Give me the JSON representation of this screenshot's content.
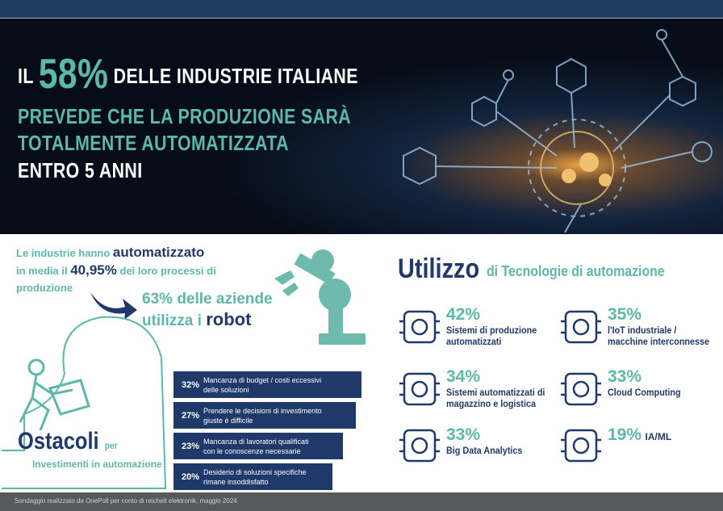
{
  "header": {
    "prefix": "IL",
    "highlight": "58%",
    "line1_rest": "DELLE INDUSTRIE ITALIANE",
    "line2": "PREVEDE CHE LA PRODUZIONE SARÀ",
    "line3": "TOTALMENTE AUTOMATIZZATA",
    "line4": "ENTRO 5 ANNI"
  },
  "automation": {
    "text1": "Le industrie hanno",
    "bold1": "automatizzato",
    "text2": "in media il",
    "bold2": "40,95%",
    "text3": "dei loro processi di",
    "text4": "produzione"
  },
  "robots": {
    "highlight": "63%",
    "text1": "delle aziende",
    "text2": "utilizza i",
    "bold": "robot"
  },
  "obstacles": {
    "title": "Ostacoli",
    "title_suffix": "per",
    "subtitle": "Investimenti in automazione",
    "items": [
      {
        "percent": "32%",
        "line1": "Mancanza di budget / costi eccessivi",
        "line2": "delle soluzioni"
      },
      {
        "percent": "27%",
        "line1": "Prendere le decisioni di investimento",
        "line2": "giuste è difficile"
      },
      {
        "percent": "23%",
        "line1": "Mancanza di lavoratori qualificati",
        "line2": "con le conoscenze necessarie"
      },
      {
        "percent": "20%",
        "line1": "Desiderio di soluzioni specifiche",
        "line2": "rimane insoddisfatto"
      }
    ]
  },
  "technologies": {
    "title": "Utilizzo",
    "subtitle": "di Tecnologie di automazione",
    "items": [
      {
        "percent": "42%",
        "line1": "Sistemi di produzione",
        "line2": "automatizzati"
      },
      {
        "percent": "35%",
        "line1": "l'IoT industriale /",
        "line2": "macchine interconnesse"
      },
      {
        "percent": "34%",
        "line1": "Sistemi automatizzati di",
        "line2": "magazzino e logistica"
      },
      {
        "percent": "33%",
        "line1": "Cloud Computing"
      },
      {
        "percent": "33%",
        "line1": "Big Data Analytics"
      },
      {
        "percent": "19%",
        "line1": "IA/ML"
      }
    ]
  },
  "footer": "Sondaggio realizzato da OnePoll per conto di reichelt elektronik, maggio 2024"
}
